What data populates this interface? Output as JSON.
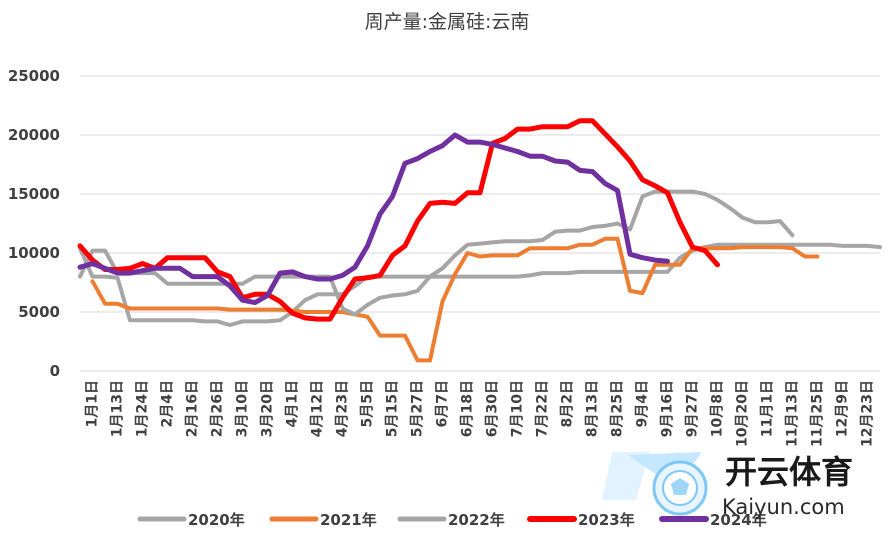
{
  "chart_data": {
    "type": "line",
    "title": "周产量:金属硅:云南",
    "ylim": [
      0,
      25000
    ],
    "yticks": [
      "0",
      "5000",
      "10000",
      "15000",
      "20000",
      "25000"
    ],
    "x_labels": [
      "1月1日",
      "1月13日",
      "1月24日",
      "2月4日",
      "2月16日",
      "2月26日",
      "3月10日",
      "3月20日",
      "4月1日",
      "4月12日",
      "4月23日",
      "5月5日",
      "5月15日",
      "5月27日",
      "6月7日",
      "6月18日",
      "6月30日",
      "7月10日",
      "7月22日",
      "8月2日",
      "8月13日",
      "8月25日",
      "9月4日",
      "9月16日",
      "9月27日",
      "10月8日",
      "10月20日",
      "11月1日",
      "11月13日",
      "11月25日",
      "12月9日",
      "12月23日"
    ],
    "grid": "horizontal",
    "legend_position": "bottom",
    "series": [
      {
        "name": "2020年",
        "color": "#a6a6a6",
        "width": 4,
        "values": [
          10400,
          8000,
          8000,
          7900,
          4300,
          4300,
          4300,
          4300,
          4300,
          4300,
          4200,
          4200,
          3900,
          4200,
          4200,
          4200,
          4300,
          5000,
          6000,
          6500,
          6500,
          6500,
          7200,
          8000,
          8000,
          8000,
          8000,
          8000,
          8000,
          8000,
          8000,
          8000,
          8000,
          8000,
          8000,
          8000,
          8100,
          8300,
          8300,
          8300,
          8400,
          8400,
          8400,
          8400,
          8400,
          8400,
          8400,
          8400,
          9600,
          10200,
          10500,
          10700,
          10700,
          10700,
          10700,
          10700,
          10700,
          10700,
          10700,
          10700,
          10700,
          10600,
          10600,
          10600,
          10500
        ]
      },
      {
        "name": "2021年",
        "color": "#ed7d31",
        "width": 4,
        "values": [
          null,
          7600,
          5700,
          5700,
          5300,
          5300,
          5300,
          5300,
          5300,
          5300,
          5300,
          5300,
          5200,
          5200,
          5200,
          5200,
          5200,
          5100,
          5000,
          5000,
          5000,
          5000,
          4800,
          4600,
          3000,
          3000,
          3000,
          900,
          900,
          5900,
          8200,
          10000,
          9700,
          9800,
          9800,
          9800,
          10400,
          10400,
          10400,
          10400,
          10700,
          10700,
          11200,
          11200,
          6800,
          6600,
          9000,
          9000,
          9000,
          10400,
          10400,
          10400,
          10400,
          10500,
          10500,
          10500,
          10500,
          10400,
          9700,
          9700,
          null,
          null,
          null,
          null,
          null
        ]
      },
      {
        "name": "2022年",
        "color": "#a5a5a5",
        "width": 4,
        "values": [
          8000,
          10200,
          10200,
          8300,
          8300,
          8300,
          8300,
          7400,
          7400,
          7400,
          7400,
          7400,
          7400,
          7400,
          8000,
          8000,
          8000,
          8000,
          8000,
          8000,
          8000,
          5300,
          4800,
          5600,
          6200,
          6400,
          6500,
          6800,
          8000,
          8700,
          9800,
          10700,
          10800,
          10900,
          11000,
          11000,
          11000,
          11100,
          11800,
          11900,
          11900,
          12200,
          12300,
          12500,
          12000,
          14800,
          15200,
          15200,
          15200,
          15200,
          15000,
          14500,
          13800,
          13000,
          12600,
          12600,
          12700,
          11500,
          null,
          null,
          null,
          null,
          null,
          null,
          null
        ]
      },
      {
        "name": "2023年",
        "color": "#ff0000",
        "width": 5,
        "values": [
          10600,
          9400,
          8600,
          8600,
          8700,
          9100,
          8700,
          9600,
          9600,
          9600,
          9600,
          8400,
          8000,
          6200,
          6500,
          6500,
          5900,
          4900,
          4500,
          4400,
          4400,
          6200,
          7800,
          7900,
          8100,
          9800,
          10600,
          12700,
          14200,
          14300,
          14200,
          15100,
          15100,
          19300,
          19700,
          20500,
          20500,
          20700,
          20700,
          20700,
          21200,
          21200,
          20100,
          19000,
          17800,
          16200,
          15700,
          15100,
          12600,
          10500,
          10200,
          9000,
          null,
          null,
          null,
          null,
          null,
          null,
          null,
          null,
          null,
          null,
          null,
          null,
          null
        ]
      },
      {
        "name": "2024年",
        "color": "#7030a0",
        "width": 5,
        "values": [
          8800,
          9100,
          8700,
          8300,
          8300,
          8500,
          8700,
          8700,
          8700,
          8000,
          8000,
          8000,
          7200,
          6000,
          5800,
          6400,
          8300,
          8400,
          8000,
          7800,
          7800,
          8100,
          8800,
          10600,
          13300,
          14800,
          17600,
          18000,
          18600,
          19100,
          20000,
          19400,
          19400,
          19200,
          18900,
          18600,
          18200,
          18200,
          17800,
          17700,
          17000,
          16900,
          15900,
          15300,
          9900,
          9600,
          9400,
          9300,
          null,
          null,
          null,
          null,
          null,
          null,
          null,
          null,
          null,
          null,
          null,
          null,
          null,
          null,
          null,
          null,
          null
        ]
      }
    ]
  },
  "watermark": {
    "brand_cn": "开云体育",
    "brand_en": "Kaiyun.com"
  }
}
